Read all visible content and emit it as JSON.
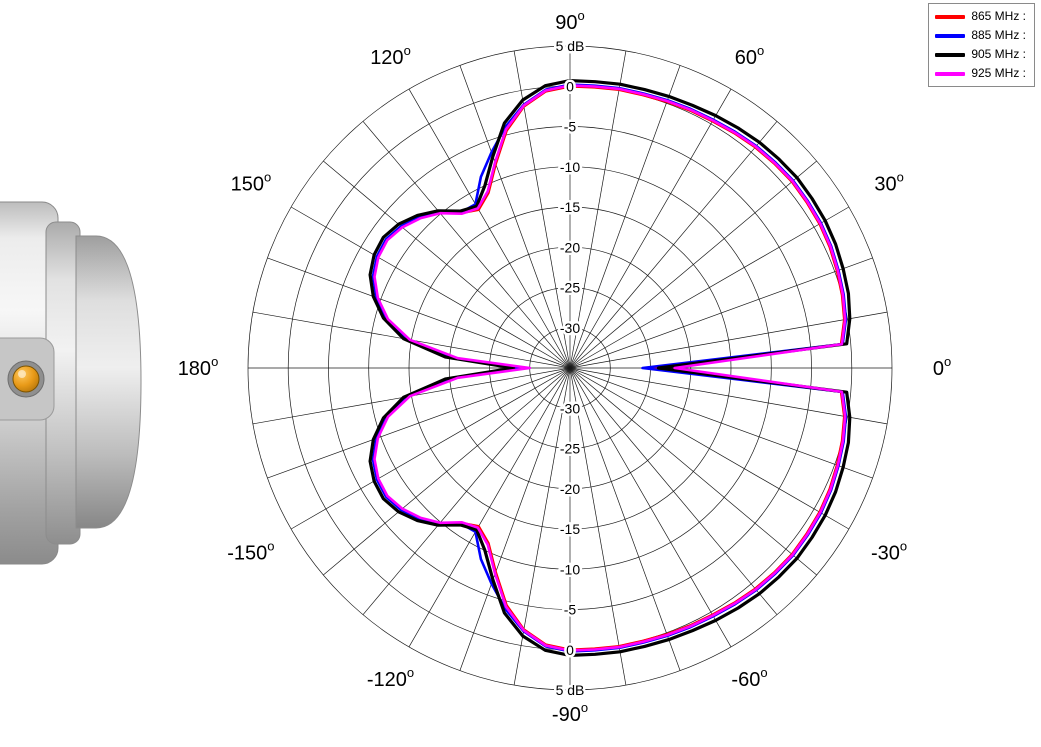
{
  "legend": {
    "border_color": "#8a8a8a",
    "entries": [
      {
        "label": "865 MHz :",
        "color": "#ff0000"
      },
      {
        "label": "885 MHz :",
        "color": "#0000ff"
      },
      {
        "label": "905 MHz :",
        "color": "#000000"
      },
      {
        "label": "925 MHz :",
        "color": "#ff00ff"
      }
    ]
  },
  "device": {
    "description": "Grey cylindrical antenna module with orange coaxial connector, side view"
  },
  "chart_data": {
    "type": "line",
    "subtype": "polar",
    "title": "",
    "angle_unit": "deg",
    "degree_symbol": "o",
    "angle_start_deg": 0,
    "angle_step_deg": 5,
    "angle_tick_labels": [
      "0",
      "30",
      "60",
      "90",
      "120",
      "150",
      "180",
      "-150",
      "-120",
      "-90",
      "-60",
      "-30"
    ],
    "radial_tick_labels": [
      "5 dB",
      "0",
      "-5",
      "-10",
      "-15",
      "-20",
      "-25",
      "-30"
    ],
    "radial_labels_mirrored_below_center": true,
    "r_axis": {
      "unit": "dB",
      "max": 5,
      "center": -35,
      "ring_step": 5
    },
    "grid": {
      "spoke_step_deg": 10,
      "color": "#1a1a1a",
      "rings_db": [
        5,
        0,
        -5,
        -10,
        -15,
        -20,
        -25,
        -30
      ]
    },
    "series": [
      {
        "name": "865 MHz",
        "color": "#ff0000",
        "values": [
          -25.0,
          -1.2,
          -0.4,
          0.0,
          0.3,
          0.6,
          0.8,
          0.9,
          1.0,
          0.9,
          0.8,
          0.6,
          0.4,
          0.3,
          0.2,
          0.1,
          0.1,
          0.0,
          0.0,
          -0.5,
          -2.0,
          -4.5,
          -8.0,
          -11.0,
          -12.3,
          -11.5,
          -9.8,
          -8.6,
          -7.7,
          -7.2,
          -7.4,
          -8.1,
          -9.5,
          -11.5,
          -14.5,
          -20.5,
          -28.5,
          -20.5,
          -14.5,
          -11.5,
          -9.5,
          -8.1,
          -7.4,
          -7.2,
          -7.7,
          -8.6,
          -9.8,
          -11.5,
          -12.3,
          -11.0,
          -8.0,
          -4.5,
          -2.0,
          -0.5,
          0.0,
          0.0,
          0.1,
          0.1,
          0.2,
          0.3,
          0.4,
          0.6,
          0.8,
          0.9,
          1.0,
          0.9,
          0.8,
          0.6,
          0.3,
          0.0,
          -0.4,
          -1.2
        ]
      },
      {
        "name": "885 MHz",
        "color": "#0000ff",
        "values": [
          -26.0,
          -1.0,
          -0.2,
          0.2,
          0.5,
          0.8,
          1.0,
          1.1,
          1.2,
          1.1,
          1.0,
          0.8,
          0.6,
          0.5,
          0.4,
          0.3,
          0.3,
          0.2,
          0.2,
          -0.3,
          -1.8,
          -4.0,
          -6.5,
          -8.8,
          -11.5,
          -11.4,
          -9.7,
          -8.5,
          -7.6,
          -7.1,
          -7.3,
          -8.0,
          -9.4,
          -11.4,
          -14.4,
          -20.0,
          -29.0,
          -20.0,
          -14.4,
          -11.4,
          -9.4,
          -8.0,
          -7.3,
          -7.1,
          -7.6,
          -8.5,
          -9.7,
          -11.4,
          -11.5,
          -8.8,
          -6.5,
          -4.0,
          -1.8,
          -0.3,
          0.2,
          0.2,
          0.3,
          0.3,
          0.4,
          0.5,
          0.6,
          0.8,
          1.0,
          1.1,
          1.2,
          1.1,
          1.0,
          0.8,
          0.5,
          0.2,
          -0.2,
          -1.0
        ]
      },
      {
        "name": "905 MHz",
        "color": "#000000",
        "values": [
          -24.0,
          -0.5,
          0.3,
          0.8,
          1.1,
          1.4,
          1.6,
          1.7,
          1.8,
          1.7,
          1.6,
          1.4,
          1.2,
          1.0,
          0.9,
          0.8,
          0.8,
          0.7,
          0.7,
          0.2,
          -1.2,
          -3.5,
          -7.0,
          -10.0,
          -11.8,
          -11.2,
          -9.5,
          -8.2,
          -7.2,
          -6.7,
          -6.9,
          -7.6,
          -9.0,
          -11.0,
          -14.0,
          -19.5,
          -28.0,
          -19.5,
          -14.0,
          -11.0,
          -9.0,
          -7.6,
          -6.9,
          -6.7,
          -7.2,
          -8.2,
          -9.5,
          -11.2,
          -11.8,
          -10.0,
          -7.0,
          -3.5,
          -1.2,
          0.2,
          0.7,
          0.7,
          0.8,
          0.8,
          0.9,
          1.0,
          1.2,
          1.4,
          1.6,
          1.7,
          1.8,
          1.7,
          1.6,
          1.4,
          1.1,
          0.8,
          0.3,
          -0.5
        ]
      },
      {
        "name": "925 MHz",
        "color": "#ff00ff",
        "values": [
          -22.0,
          -1.1,
          -0.3,
          0.1,
          0.4,
          0.7,
          0.9,
          1.0,
          1.1,
          1.0,
          0.9,
          0.7,
          0.5,
          0.4,
          0.3,
          0.2,
          0.2,
          0.1,
          0.1,
          -0.4,
          -1.9,
          -4.3,
          -7.8,
          -10.8,
          -12.1,
          -11.6,
          -9.9,
          -8.7,
          -7.8,
          -7.3,
          -7.5,
          -8.2,
          -9.6,
          -11.6,
          -14.8,
          -21.0,
          -30.0,
          -21.0,
          -14.8,
          -11.6,
          -9.6,
          -8.2,
          -7.5,
          -7.3,
          -7.8,
          -8.7,
          -9.9,
          -11.6,
          -12.1,
          -10.8,
          -7.8,
          -4.3,
          -1.9,
          -0.4,
          0.1,
          0.1,
          0.2,
          0.2,
          0.3,
          0.4,
          0.5,
          0.7,
          0.9,
          1.0,
          1.1,
          1.0,
          0.9,
          0.7,
          0.4,
          0.1,
          -0.3,
          -1.1
        ]
      }
    ]
  }
}
